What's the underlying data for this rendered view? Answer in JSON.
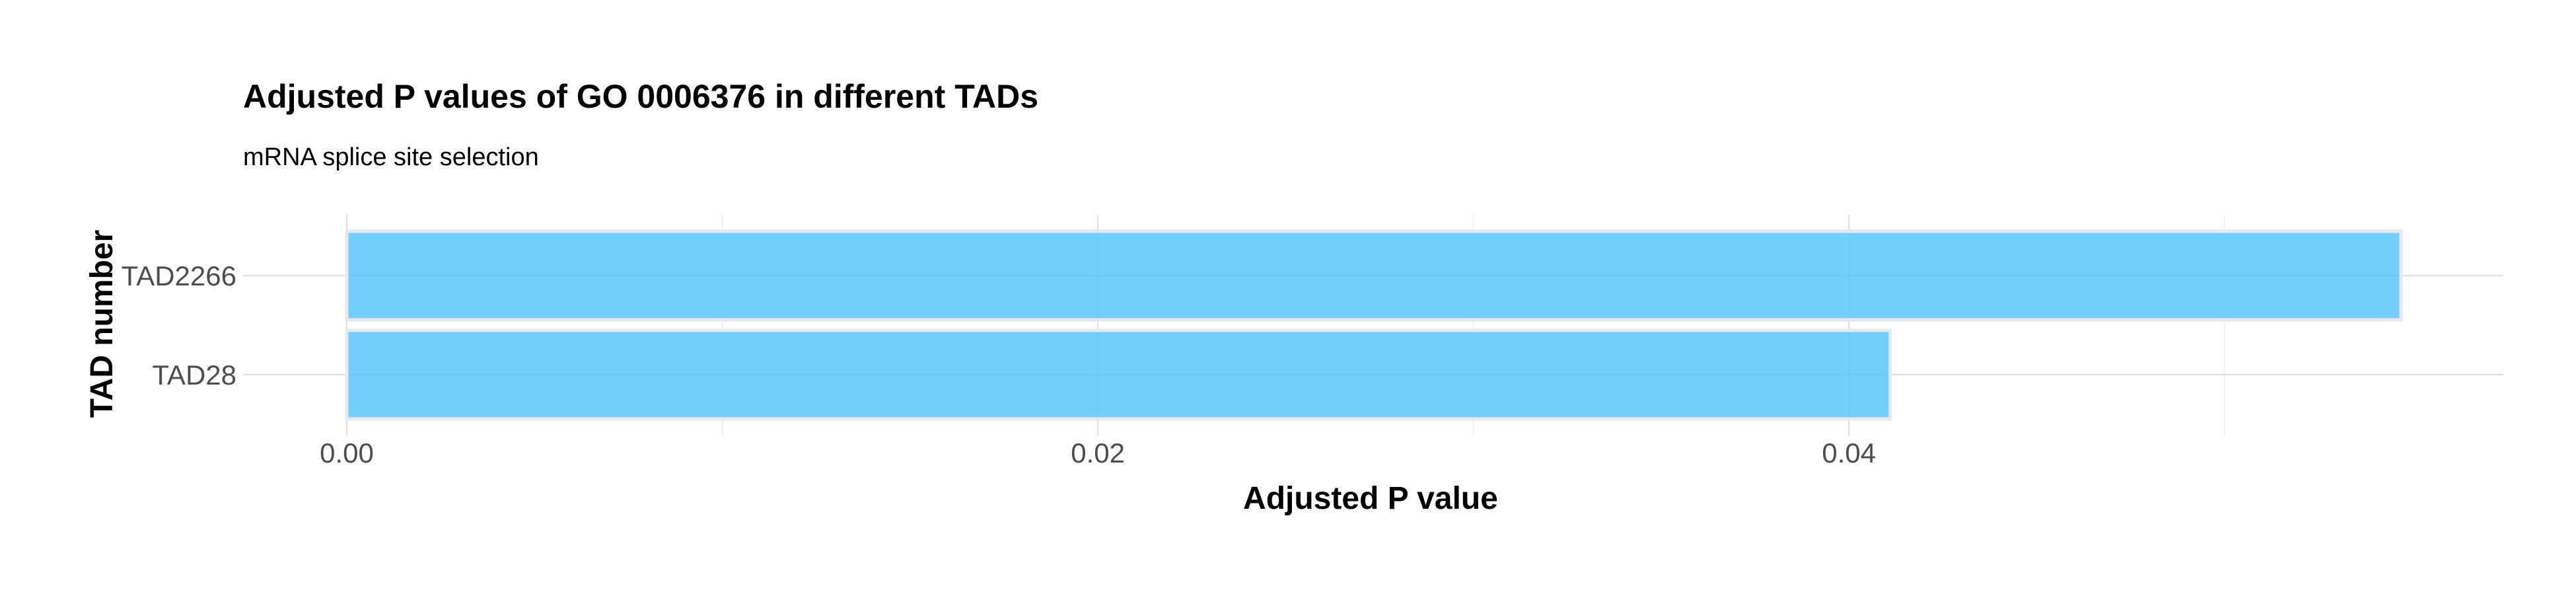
{
  "chart_data": {
    "type": "bar",
    "orientation": "horizontal",
    "title": "Adjusted P values of GO 0006376 in different TADs",
    "subtitle": "mRNA splice site selection",
    "xlabel": "Adjusted P value",
    "ylabel": "TAD number",
    "categories": [
      "TAD2266",
      "TAD28"
    ],
    "values": [
      0.0547,
      0.0411
    ],
    "xlim": [
      0,
      0.0572
    ],
    "x_ticks": [
      0.0,
      0.02,
      0.04
    ],
    "x_tick_labels": [
      "0.00",
      "0.02",
      "0.04"
    ],
    "x_minor_ticks": [
      0.01,
      0.03,
      0.05
    ],
    "grid": true,
    "legend": "none",
    "bar_color": "#5BC8FB",
    "bar_outline_color": "#E8E8EE"
  }
}
